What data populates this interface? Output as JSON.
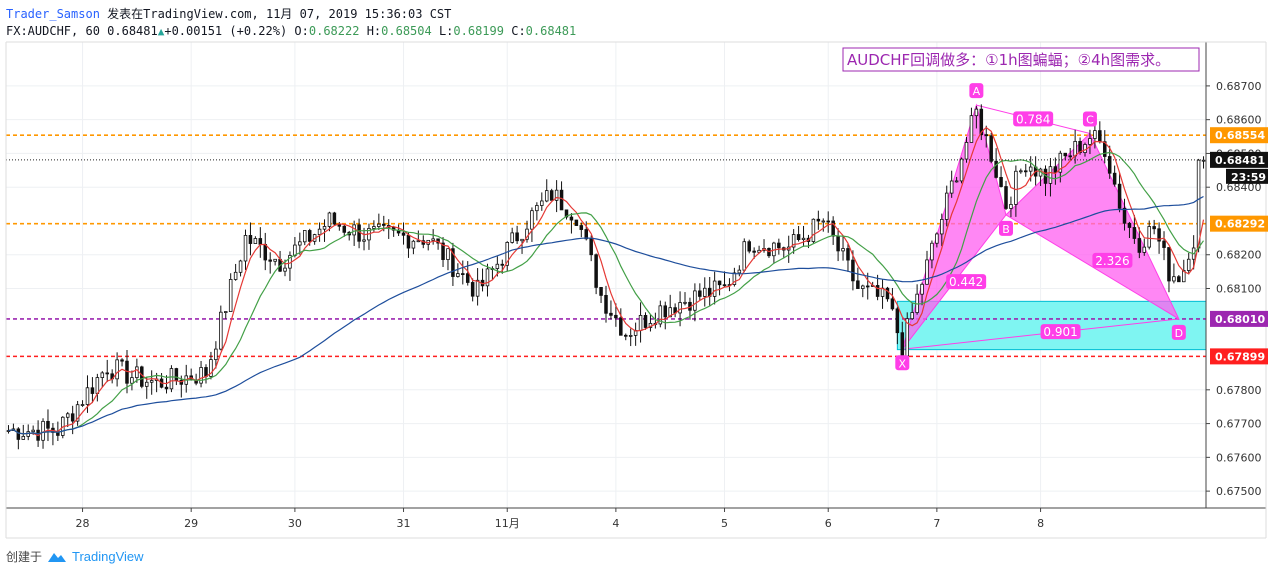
{
  "header": {
    "author": "Trader_Samson",
    "published": "发表在TradingView.com, 11月 07, 2019 15:36:03 CST",
    "symbol": "FX:AUDCHF, 60",
    "last": "0.68481",
    "change_arrow": "triangle-up-icon",
    "change": "+0.00151 (+0.22%)",
    "o_label": "O:",
    "o": "0.68222",
    "h_label": "H:",
    "h": "0.68504",
    "l_label": "L:",
    "l": "0.68199",
    "c_label": "C:",
    "c": "0.68481"
  },
  "annotation": "AUDCHF回调做多：①1h图蝙蝠；②4h图需求。",
  "footer": {
    "created_with": "创建于",
    "brand": "TradingView"
  },
  "colors": {
    "accent_orange": "#ff9800",
    "purple": "#9c27b0",
    "red": "#ff1f1f",
    "pattern_fill": "#ff5ff0",
    "zone_fill": "#7ff5f2",
    "ma_fast": "#e53935",
    "ma_mid": "#43a047",
    "ma_slow": "#1e4e9c",
    "candle": "#111111"
  },
  "chart_data": {
    "type": "candlestick",
    "symbol": "FX:AUDCHF",
    "timeframe": "60",
    "x_ticks": [
      "28",
      "29",
      "30",
      "31",
      "11月",
      "4",
      "5",
      "6",
      "7",
      "8"
    ],
    "y_ticks": [
      "0.68700",
      "0.68600",
      "0.68500",
      "0.68400",
      "0.68200",
      "0.68100",
      "0.67800",
      "0.67700",
      "0.67600",
      "0.67500"
    ],
    "ylim": [
      0.6745,
      0.6883
    ],
    "last_price": "0.68481",
    "countdown": "23:59",
    "horizontal_levels": [
      {
        "value": 0.68554,
        "label": "0.68554",
        "color": "#ff9800",
        "style": "dashed"
      },
      {
        "value": 0.68292,
        "label": "0.68292",
        "color": "#ff9800",
        "style": "dashed"
      },
      {
        "value": 0.6801,
        "label": "0.68010",
        "color": "#9c27b0",
        "style": "dashed"
      },
      {
        "value": 0.67899,
        "label": "0.67899",
        "color": "#ff1f1f",
        "style": "dashed"
      }
    ],
    "demand_zone": {
      "from": 0.67919,
      "to": 0.68062
    },
    "bat_pattern": {
      "points": [
        {
          "label": "X",
          "bar": 181,
          "price": 0.6792
        },
        {
          "label": "A",
          "bar": 196,
          "price": 0.68643
        },
        {
          "label": "B",
          "bar": 202,
          "price": 0.68318
        },
        {
          "label": "C",
          "bar": 219,
          "price": 0.68559
        },
        {
          "label": "D",
          "bar": 237,
          "price": 0.6801
        }
      ],
      "ratios": [
        {
          "value": "0.784",
          "between": "A-C"
        },
        {
          "value": "0.442",
          "between": "X-B"
        },
        {
          "value": "2.326",
          "between": "B-D"
        },
        {
          "value": "0.901",
          "between": "X-D"
        }
      ]
    },
    "anchors": [
      [
        0,
        0.6768
      ],
      [
        10,
        0.6768
      ],
      [
        20,
        0.6787
      ],
      [
        25,
        0.6784
      ],
      [
        30,
        0.6782
      ],
      [
        40,
        0.6785
      ],
      [
        48,
        0.6825
      ],
      [
        55,
        0.6818
      ],
      [
        65,
        0.683
      ],
      [
        72,
        0.6826
      ],
      [
        85,
        0.6825
      ],
      [
        95,
        0.6809
      ],
      [
        105,
        0.683
      ],
      [
        110,
        0.6838
      ],
      [
        115,
        0.6832
      ],
      [
        120,
        0.6808
      ],
      [
        125,
        0.6797
      ],
      [
        132,
        0.6804
      ],
      [
        140,
        0.6808
      ],
      [
        145,
        0.681
      ],
      [
        150,
        0.6824
      ],
      [
        158,
        0.6822
      ],
      [
        165,
        0.683
      ],
      [
        172,
        0.681
      ],
      [
        178,
        0.6806
      ],
      [
        181,
        0.6793
      ],
      [
        185,
        0.6812
      ],
      [
        192,
        0.6845
      ],
      [
        196,
        0.6862
      ],
      [
        199,
        0.685
      ],
      [
        202,
        0.6835
      ],
      [
        206,
        0.6848
      ],
      [
        210,
        0.6843
      ],
      [
        215,
        0.685
      ],
      [
        219,
        0.6855
      ],
      [
        222,
        0.6852
      ],
      [
        226,
        0.683
      ],
      [
        229,
        0.6824
      ],
      [
        232,
        0.6828
      ],
      [
        235,
        0.6815
      ],
      [
        237,
        0.6812
      ],
      [
        240,
        0.6822
      ],
      [
        241,
        0.6848
      ]
    ],
    "indicators": [
      {
        "name": "ma-fast",
        "color": "#e53935"
      },
      {
        "name": "ma-mid",
        "color": "#43a047"
      },
      {
        "name": "ma-slow",
        "color": "#1e4e9c"
      }
    ]
  }
}
